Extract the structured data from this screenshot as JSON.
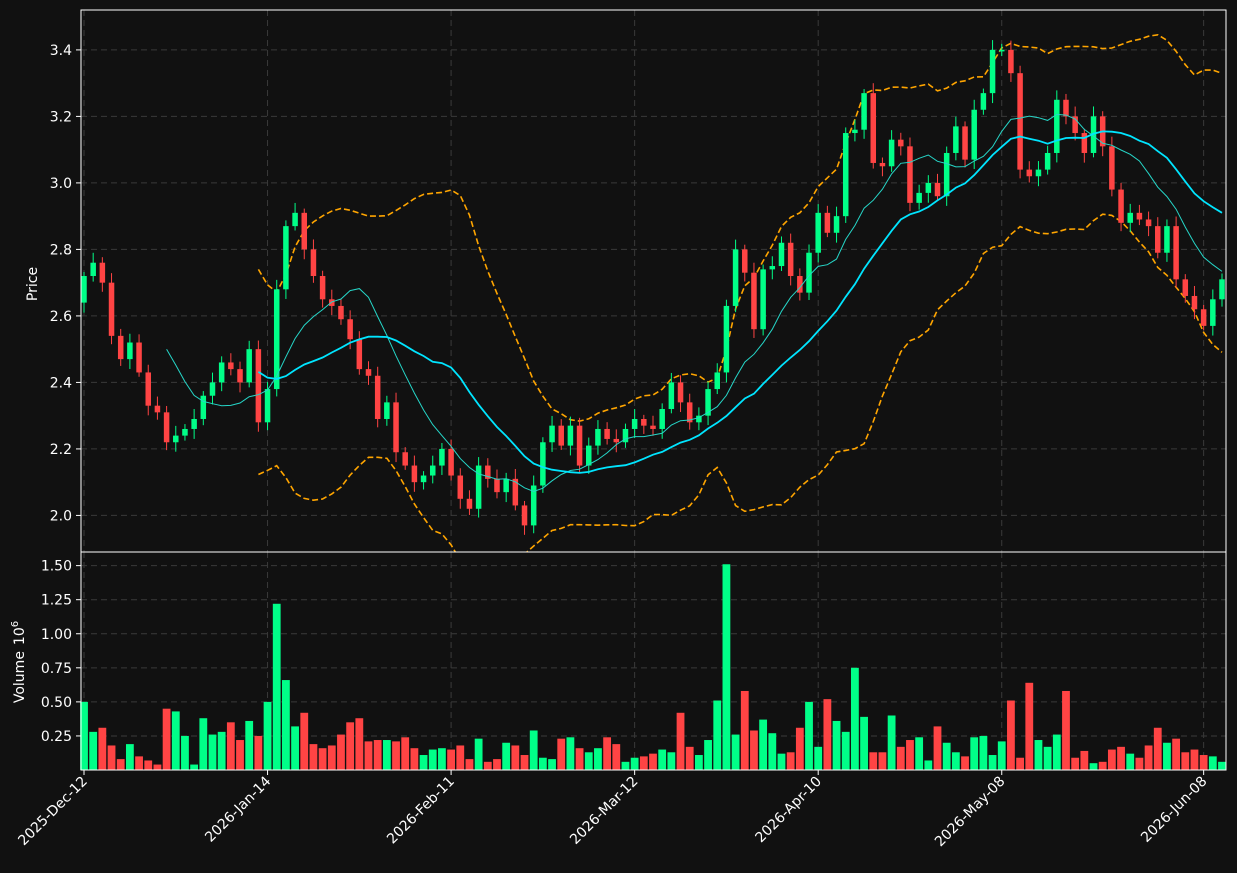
{
  "chart_data": {
    "type": "candlestick",
    "panels": [
      {
        "name": "price",
        "ylabel": "Price",
        "yticks": [
          2.0,
          2.2,
          2.4,
          2.6,
          2.8,
          3.0,
          3.2,
          3.4
        ],
        "ylim": [
          1.89,
          3.52
        ]
      },
      {
        "name": "volume",
        "ylabel": "Volume",
        "ylabel_exponent": "6",
        "yticks": [
          0.25,
          0.5,
          0.75,
          1.0,
          1.25,
          1.5
        ],
        "ylim": [
          0.0,
          1.6
        ]
      }
    ],
    "ytick_labels": {
      "price": [
        "2.0",
        "2.2",
        "2.4",
        "2.6",
        "2.8",
        "3.0",
        "3.2",
        "3.4"
      ],
      "volume": [
        "0.25",
        "0.50",
        "0.75",
        "1.00",
        "1.25",
        "1.50"
      ]
    },
    "xtick_labels": [
      {
        "label": "2025-Dec-12",
        "index": 0
      },
      {
        "label": "2026-Jan-14",
        "index": 20
      },
      {
        "label": "2026-Feb-11",
        "index": 40
      },
      {
        "label": "2026-Mar-12",
        "index": 60
      },
      {
        "label": "2026-Apr-10",
        "index": 80
      },
      {
        "label": "2026-May-08",
        "index": 100
      },
      {
        "label": "2026-Jun-08",
        "index": 122
      }
    ],
    "n_bars": 125,
    "close": [
      2.72,
      2.76,
      2.7,
      2.54,
      2.47,
      2.52,
      2.43,
      2.33,
      2.31,
      2.22,
      2.24,
      2.26,
      2.29,
      2.36,
      2.4,
      2.46,
      2.44,
      2.4,
      2.5,
      2.28,
      2.38,
      2.68,
      2.87,
      2.91,
      2.8,
      2.72,
      2.65,
      2.63,
      2.59,
      2.53,
      2.44,
      2.42,
      2.29,
      2.34,
      2.19,
      2.15,
      2.1,
      2.12,
      2.15,
      2.2,
      2.12,
      2.05,
      2.02,
      2.15,
      2.11,
      2.07,
      2.11,
      2.03,
      1.97,
      2.09,
      2.22,
      2.27,
      2.21,
      2.27,
      2.15,
      2.21,
      2.26,
      2.23,
      2.22,
      2.26,
      2.29,
      2.27,
      2.26,
      2.32,
      2.4,
      2.34,
      2.28,
      2.3,
      2.38,
      2.43,
      2.63,
      2.8,
      2.73,
      2.56,
      2.74,
      2.75,
      2.82,
      2.72,
      2.67,
      2.79,
      2.91,
      2.85,
      2.9,
      3.15,
      3.16,
      3.27,
      3.06,
      3.05,
      3.13,
      3.11,
      2.94,
      2.97,
      3.0,
      2.96,
      3.09,
      3.17,
      3.07,
      3.22,
      3.27,
      3.4,
      3.4,
      3.33,
      3.04,
      3.02,
      3.04,
      3.09,
      3.25,
      3.2,
      3.15,
      3.09,
      3.2,
      3.11,
      2.98,
      2.88,
      2.91,
      2.89,
      2.87,
      2.79,
      2.87,
      2.71,
      2.66,
      2.62,
      2.57,
      2.65,
      2.71
    ],
    "volume": [
      0.5,
      0.28,
      0.31,
      0.18,
      0.08,
      0.19,
      0.1,
      0.07,
      0.04,
      0.45,
      0.43,
      0.25,
      0.04,
      0.38,
      0.26,
      0.28,
      0.35,
      0.22,
      0.36,
      0.25,
      0.5,
      1.22,
      0.66,
      0.32,
      0.42,
      0.19,
      0.16,
      0.18,
      0.26,
      0.35,
      0.38,
      0.21,
      0.22,
      0.22,
      0.21,
      0.24,
      0.16,
      0.11,
      0.15,
      0.16,
      0.15,
      0.18,
      0.08,
      0.23,
      0.06,
      0.08,
      0.2,
      0.18,
      0.11,
      0.29,
      0.09,
      0.08,
      0.23,
      0.24,
      0.16,
      0.13,
      0.16,
      0.24,
      0.19,
      0.06,
      0.09,
      0.1,
      0.12,
      0.15,
      0.13,
      0.42,
      0.17,
      0.11,
      0.22,
      0.51,
      1.51,
      0.26,
      0.58,
      0.29,
      0.37,
      0.27,
      0.12,
      0.13,
      0.31,
      0.5,
      0.17,
      0.52,
      0.36,
      0.28,
      0.75,
      0.39,
      0.13,
      0.13,
      0.4,
      0.17,
      0.22,
      0.24,
      0.07,
      0.32,
      0.2,
      0.13,
      0.1,
      0.24,
      0.25,
      0.11,
      0.21,
      0.51,
      0.09,
      0.64,
      0.22,
      0.17,
      0.26,
      0.58,
      0.09,
      0.14,
      0.05,
      0.06,
      0.15,
      0.17,
      0.12,
      0.09,
      0.18,
      0.31,
      0.2,
      0.23,
      0.13,
      0.15,
      0.11,
      0.1,
      0.06
    ],
    "colors": {
      "up": "#00ff88",
      "down": "#ff4444",
      "ma_fast": "#26d6c8",
      "ma_slow": "#00e5ff",
      "bands": "#ffa500",
      "grid": "#3a3a3a",
      "axes": "#ffffff",
      "background": "#111111"
    }
  }
}
